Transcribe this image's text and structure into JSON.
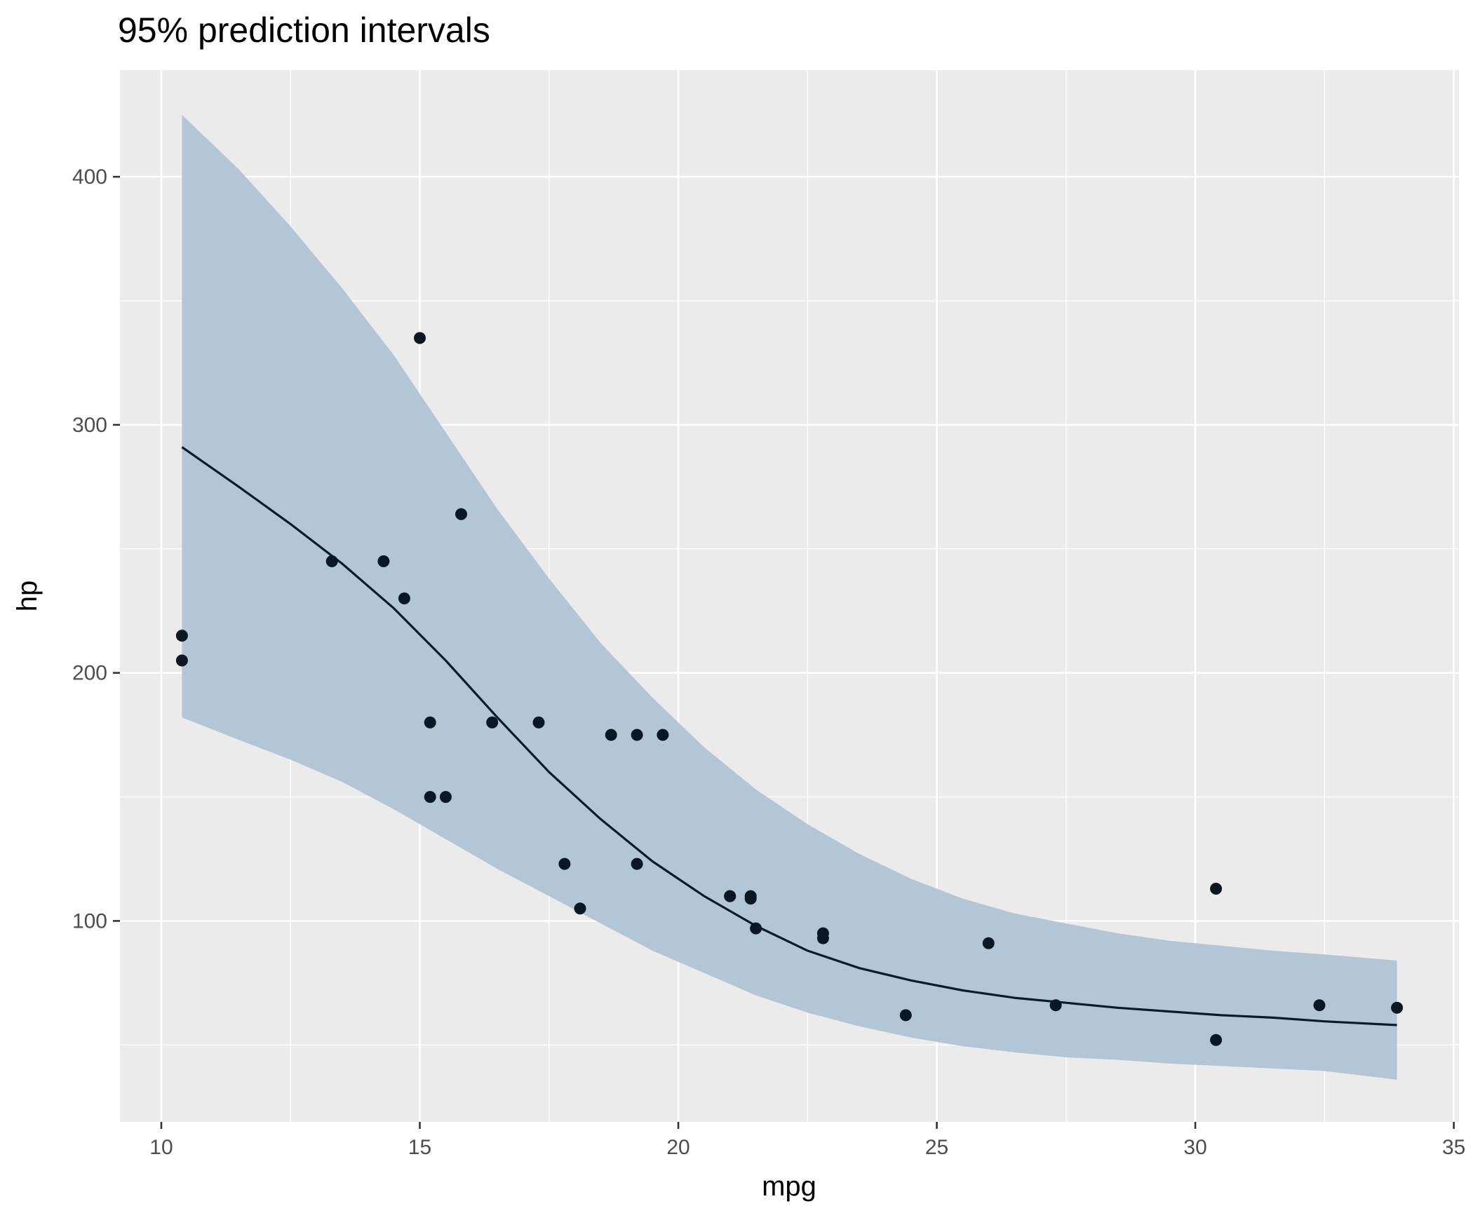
{
  "chart_data": {
    "type": "scatter",
    "title": "95% prediction intervals",
    "xlabel": "mpg",
    "ylabel": "hp",
    "xlim": [
      9.2,
      35.1
    ],
    "ylim": [
      19,
      443
    ],
    "x_ticks": [
      10,
      15,
      20,
      25,
      30,
      35
    ],
    "y_ticks": [
      100,
      200,
      300,
      400
    ],
    "x_tick_labels": [
      "10",
      "15",
      "20",
      "25",
      "30",
      "35"
    ],
    "y_tick_labels": [
      "100",
      "200",
      "300",
      "400"
    ],
    "grid": true,
    "legend": "none",
    "colors": {
      "panel_background": "#ebebeb",
      "grid_line": "#ffffff",
      "ribbon_fill": "#b3c6d5",
      "fit_line": "#0d1b28",
      "point": "#0b1823"
    },
    "series": [
      {
        "type": "scatter",
        "points": [
          [
            21.0,
            110
          ],
          [
            21.0,
            110
          ],
          [
            22.8,
            93
          ],
          [
            21.4,
            110
          ],
          [
            18.7,
            175
          ],
          [
            18.1,
            105
          ],
          [
            14.3,
            245
          ],
          [
            24.4,
            62
          ],
          [
            22.8,
            95
          ],
          [
            19.2,
            123
          ],
          [
            17.8,
            123
          ],
          [
            16.4,
            180
          ],
          [
            17.3,
            180
          ],
          [
            15.2,
            180
          ],
          [
            10.4,
            205
          ],
          [
            10.4,
            215
          ],
          [
            14.7,
            230
          ],
          [
            32.4,
            66
          ],
          [
            30.4,
            52
          ],
          [
            33.9,
            65
          ],
          [
            21.5,
            97
          ],
          [
            15.5,
            150
          ],
          [
            15.2,
            150
          ],
          [
            13.3,
            245
          ],
          [
            19.2,
            175
          ],
          [
            27.3,
            66
          ],
          [
            26.0,
            91
          ],
          [
            30.4,
            113
          ],
          [
            15.8,
            264
          ],
          [
            19.7,
            175
          ],
          [
            15.0,
            335
          ],
          [
            21.4,
            109
          ]
        ]
      },
      {
        "type": "line",
        "points": [
          [
            10.4,
            291
          ],
          [
            11.5,
            275
          ],
          [
            12.5,
            260
          ],
          [
            13.5,
            244
          ],
          [
            14.5,
            226
          ],
          [
            15.5,
            205
          ],
          [
            16.5,
            182
          ],
          [
            17.5,
            160
          ],
          [
            18.5,
            141
          ],
          [
            19.5,
            124
          ],
          [
            20.5,
            110
          ],
          [
            21.5,
            98
          ],
          [
            22.5,
            88
          ],
          [
            23.5,
            81
          ],
          [
            24.5,
            76
          ],
          [
            25.5,
            72
          ],
          [
            26.5,
            69
          ],
          [
            27.5,
            67
          ],
          [
            28.5,
            65
          ],
          [
            29.5,
            63.5
          ],
          [
            30.5,
            62
          ],
          [
            31.5,
            61
          ],
          [
            32.5,
            59.5
          ],
          [
            33.9,
            58
          ]
        ]
      },
      {
        "type": "ribbon",
        "upper": [
          [
            10.4,
            425
          ],
          [
            11.5,
            403
          ],
          [
            12.5,
            380
          ],
          [
            13.5,
            355
          ],
          [
            14.5,
            328
          ],
          [
            15.5,
            297
          ],
          [
            16.5,
            266
          ],
          [
            17.5,
            238
          ],
          [
            18.5,
            212
          ],
          [
            19.5,
            190
          ],
          [
            20.5,
            170
          ],
          [
            21.5,
            153
          ],
          [
            22.5,
            139
          ],
          [
            23.5,
            127
          ],
          [
            24.5,
            117
          ],
          [
            25.5,
            109
          ],
          [
            26.5,
            103
          ],
          [
            27.5,
            99
          ],
          [
            28.5,
            95
          ],
          [
            29.5,
            92
          ],
          [
            30.5,
            90
          ],
          [
            31.5,
            88
          ],
          [
            32.5,
            86.5
          ],
          [
            33.9,
            84
          ]
        ],
        "lower": [
          [
            10.4,
            182
          ],
          [
            11.5,
            173
          ],
          [
            12.5,
            165
          ],
          [
            13.5,
            156
          ],
          [
            14.5,
            145
          ],
          [
            15.5,
            133
          ],
          [
            16.5,
            121
          ],
          [
            17.5,
            110
          ],
          [
            18.5,
            99
          ],
          [
            19.5,
            88
          ],
          [
            20.5,
            79
          ],
          [
            21.5,
            70
          ],
          [
            22.5,
            63
          ],
          [
            23.5,
            57.5
          ],
          [
            24.5,
            53
          ],
          [
            25.5,
            49.5
          ],
          [
            26.5,
            47
          ],
          [
            27.5,
            45
          ],
          [
            28.5,
            44
          ],
          [
            29.5,
            42.5
          ],
          [
            30.5,
            41.5
          ],
          [
            31.5,
            40.5
          ],
          [
            32.5,
            39.5
          ],
          [
            33.9,
            36
          ]
        ]
      }
    ]
  }
}
